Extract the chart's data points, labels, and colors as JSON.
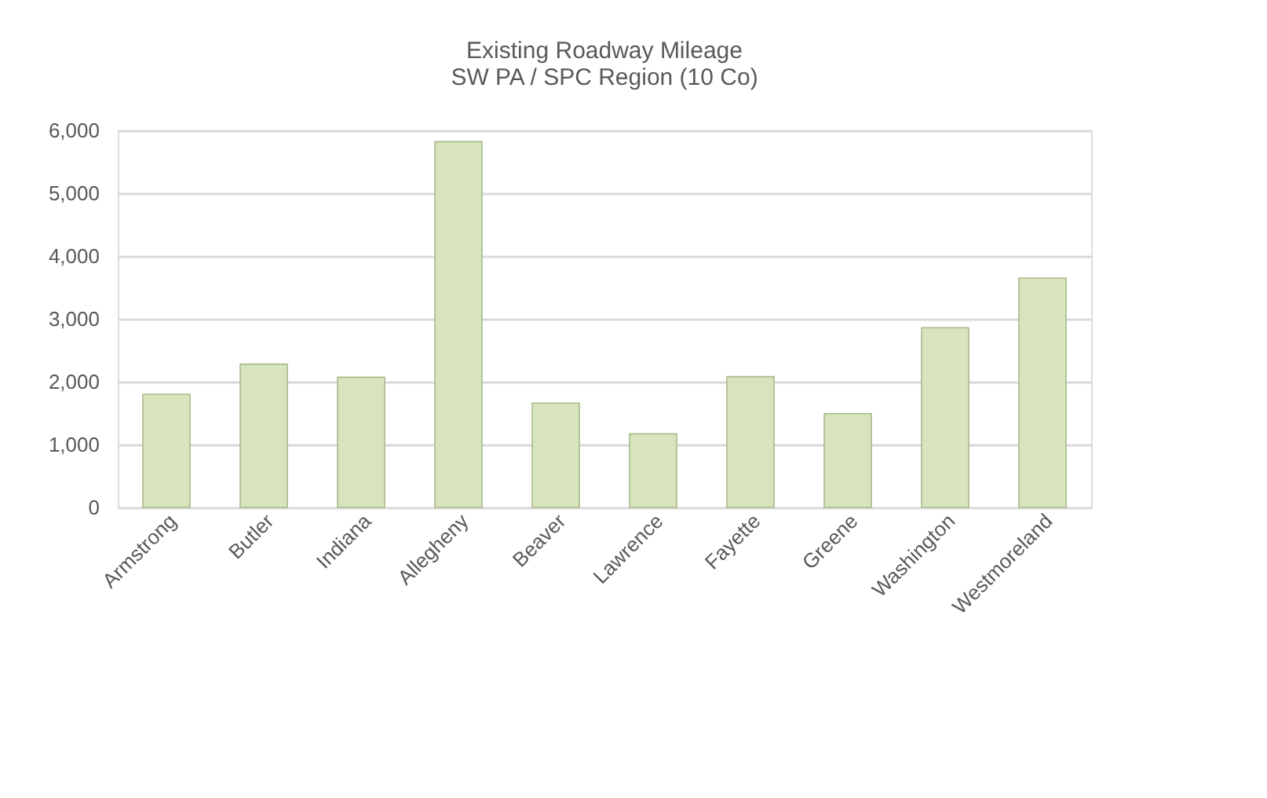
{
  "chart_data": {
    "type": "bar",
    "title": [
      "Existing Roadway Mileage",
      "SW PA / SPC Region (10 Co)"
    ],
    "categories": [
      "Armstrong",
      "Butler",
      "Indiana",
      "Allegheny",
      "Beaver",
      "Lawrence",
      "Fayette",
      "Greene",
      "Washington",
      "Westmoreland"
    ],
    "values": [
      1800,
      2280,
      2070,
      5820,
      1660,
      1170,
      2080,
      1490,
      2860,
      3650
    ],
    "color": "#d7e4bd",
    "ylim": [
      0,
      6000
    ],
    "yticks": [
      0,
      {
        "value": 1000,
        "label": "1,000"
      },
      {
        "value": 2000,
        "label": "2,000"
      },
      {
        "value": 3000,
        "label": "3,000"
      },
      {
        "value": 4000,
        "label": "4,000"
      },
      {
        "value": 5000,
        "label": "5,000"
      },
      {
        "value": 6000,
        "label": "6,000"
      }
    ],
    "grid": "y"
  }
}
